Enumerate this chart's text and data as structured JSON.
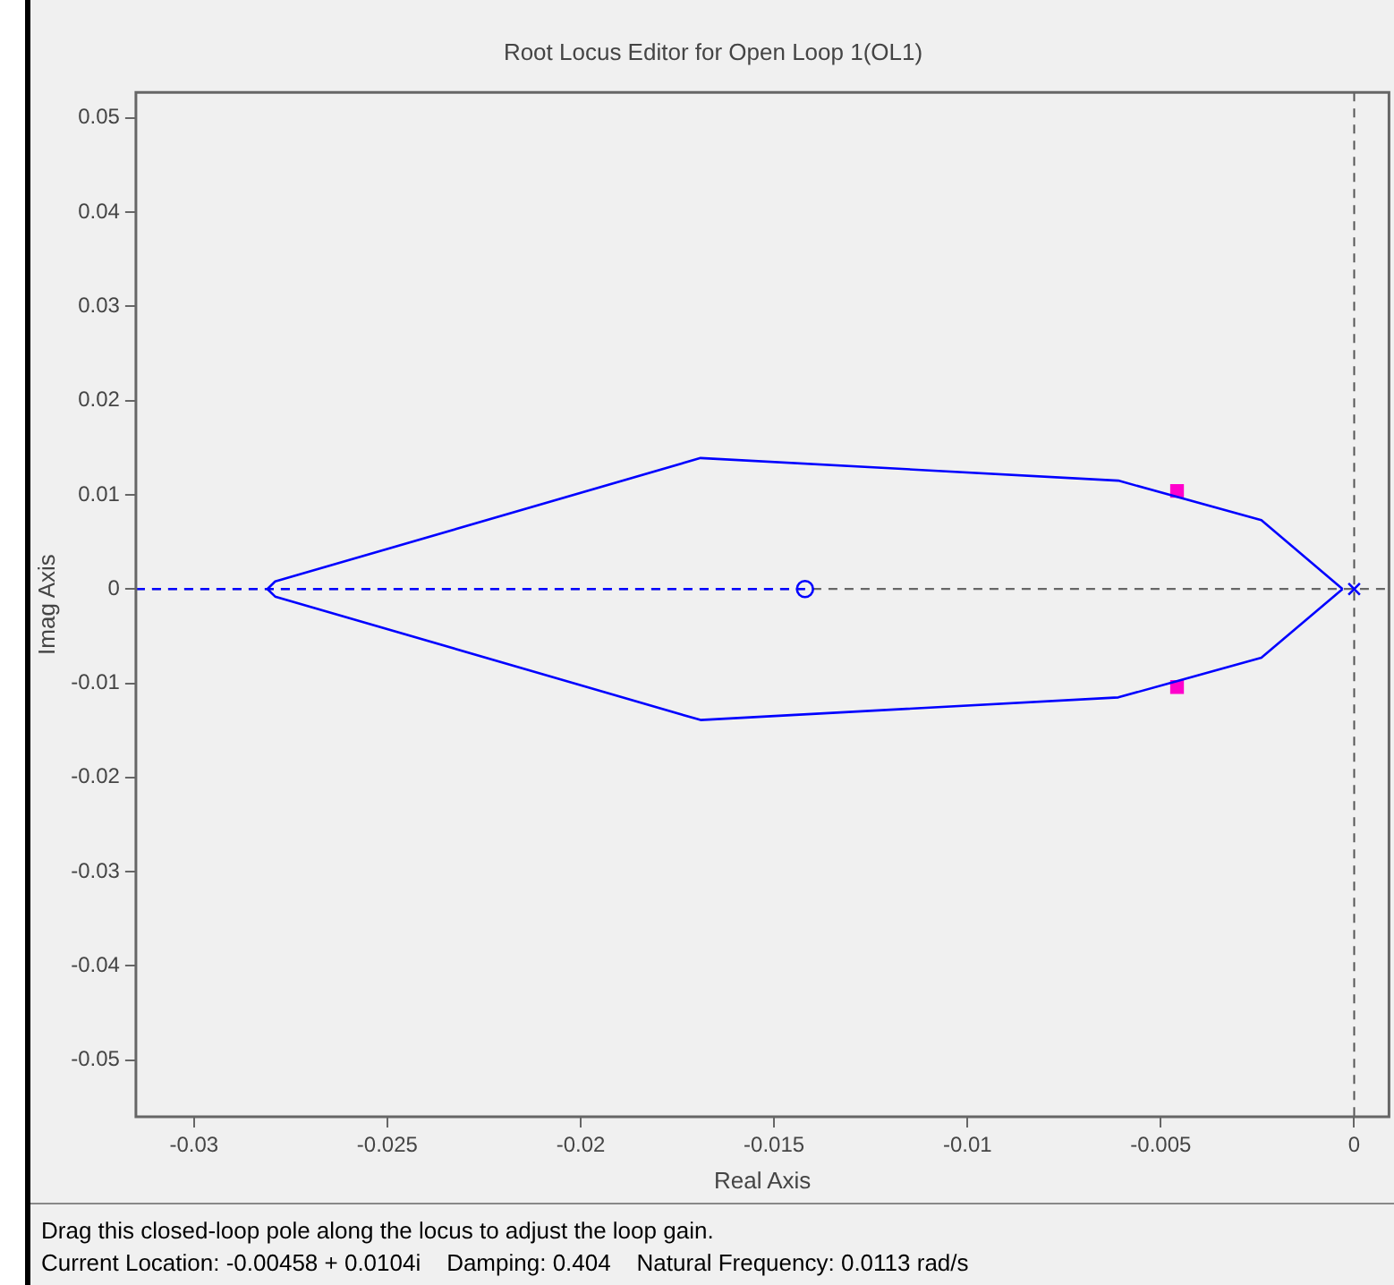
{
  "chart_data": {
    "type": "line",
    "title": "Root Locus Editor for Open Loop 1(OL1)",
    "xlabel": "Real Axis",
    "ylabel": "Imag Axis",
    "xlim": [
      -0.0315,
      0.0009
    ],
    "ylim": [
      -0.056,
      0.0527
    ],
    "xticks": [
      -0.03,
      -0.025,
      -0.02,
      -0.015,
      -0.01,
      -0.005,
      0
    ],
    "yticks": [
      -0.05,
      -0.04,
      -0.03,
      -0.02,
      -0.01,
      0,
      0.01,
      0.02,
      0.03,
      0.04,
      0.05
    ],
    "grid": false,
    "legend": false,
    "series": [
      {
        "type": "line",
        "color": "#0000ff",
        "marker": "none",
        "line_style": "solid",
        "x": [
          -0.0003,
          -0.0024,
          -0.0061,
          -0.0169,
          -0.0279,
          -0.0281
        ],
        "values": [
          0,
          0.0073,
          0.0115,
          0.0139,
          0.0008,
          0
        ]
      },
      {
        "type": "line",
        "color": "#0000ff",
        "marker": "none",
        "line_style": "solid",
        "x": [
          -0.0003,
          -0.0024,
          -0.0061,
          -0.0169,
          -0.0279,
          -0.0281
        ],
        "values": [
          0,
          -0.0073,
          -0.0115,
          -0.0139,
          -0.0008,
          0
        ]
      },
      {
        "type": "line",
        "color": "#0000ff",
        "marker": "none",
        "line_style": "dashed",
        "x": [
          -0.0315,
          -0.0142
        ],
        "values": [
          0,
          0
        ]
      },
      {
        "type": "scatter",
        "color": "#0000ff",
        "marker": "circle",
        "x": [
          -0.0142
        ],
        "values": [
          0
        ]
      },
      {
        "type": "scatter",
        "color": "#0000ff",
        "marker": "cross",
        "x": [
          0
        ],
        "values": [
          0
        ]
      },
      {
        "type": "scatter",
        "color": "#ff00cc",
        "marker": "square",
        "x": [
          -0.00458,
          -0.00458
        ],
        "values": [
          0.0104,
          -0.0104
        ]
      }
    ],
    "ref_lines": [
      {
        "axis": "x",
        "value": 0,
        "color": "#555555",
        "line_style": "dashed"
      },
      {
        "axis": "y",
        "value": 0,
        "color": "#666666",
        "line_style": "dashed"
      }
    ],
    "annotations": [
      "Drag this closed-loop pole along the locus to adjust the loop gain.",
      "Current Location: -0.00458 + 0.0104i    Damping: 0.404    Natural Frequency: 0.0113 rad/s"
    ]
  }
}
